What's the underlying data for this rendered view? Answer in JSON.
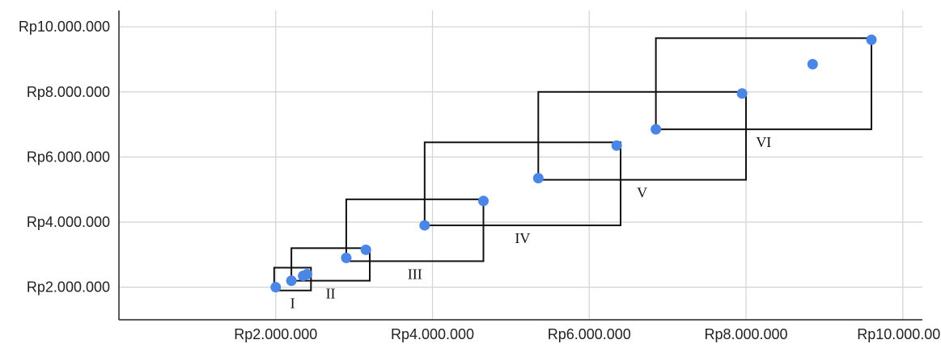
{
  "chart_data": {
    "type": "scatter",
    "title": "",
    "xlabel": "",
    "ylabel": "",
    "xlim": [
      0,
      10250000
    ],
    "ylim": [
      1000000,
      10500000
    ],
    "x_ticks": [
      {
        "value": 2000000,
        "label": "Rp2.000.000"
      },
      {
        "value": 4000000,
        "label": "Rp4.000.000"
      },
      {
        "value": 6000000,
        "label": "Rp6.000.000"
      },
      {
        "value": 8000000,
        "label": "Rp8.000.000"
      },
      {
        "value": 10000000,
        "label": "Rp10.000.000"
      }
    ],
    "y_ticks": [
      {
        "value": 2000000,
        "label": "Rp2.000.000"
      },
      {
        "value": 4000000,
        "label": "Rp4.000.000"
      },
      {
        "value": 6000000,
        "label": "Rp6.000.000"
      },
      {
        "value": 8000000,
        "label": "Rp8.000.000"
      },
      {
        "value": 10000000,
        "label": "Rp10.000.000"
      }
    ],
    "grid": true,
    "point_color": "#4a86e8",
    "points": [
      {
        "x": 2000000,
        "y": 2000000
      },
      {
        "x": 2200000,
        "y": 2200000
      },
      {
        "x": 2350000,
        "y": 2350000
      },
      {
        "x": 2400000,
        "y": 2400000
      },
      {
        "x": 2900000,
        "y": 2900000
      },
      {
        "x": 3150000,
        "y": 3150000
      },
      {
        "x": 3900000,
        "y": 3900000
      },
      {
        "x": 4650000,
        "y": 4650000
      },
      {
        "x": 5350000,
        "y": 5350000
      },
      {
        "x": 6350000,
        "y": 6350000
      },
      {
        "x": 6850000,
        "y": 6850000
      },
      {
        "x": 7950000,
        "y": 7950000
      },
      {
        "x": 8850000,
        "y": 8850000
      },
      {
        "x": 9600000,
        "y": 9600000
      }
    ],
    "range_boxes": [
      {
        "label": "I",
        "x0": 1980000,
        "x1": 2450000,
        "y0": 1900000,
        "y1": 2600000
      },
      {
        "label": "II",
        "x0": 2200000,
        "x1": 3200000,
        "y0": 2200000,
        "y1": 3200000
      },
      {
        "label": "III",
        "x0": 2900000,
        "x1": 4650000,
        "y0": 2800000,
        "y1": 4700000
      },
      {
        "label": "IV",
        "x0": 3900000,
        "x1": 6400000,
        "y0": 3900000,
        "y1": 6450000
      },
      {
        "label": "V",
        "x0": 5350000,
        "x1": 8000000,
        "y0": 5300000,
        "y1": 8000000
      },
      {
        "label": "VI",
        "x0": 6850000,
        "x1": 9600000,
        "y0": 6850000,
        "y1": 9650000
      }
    ]
  }
}
